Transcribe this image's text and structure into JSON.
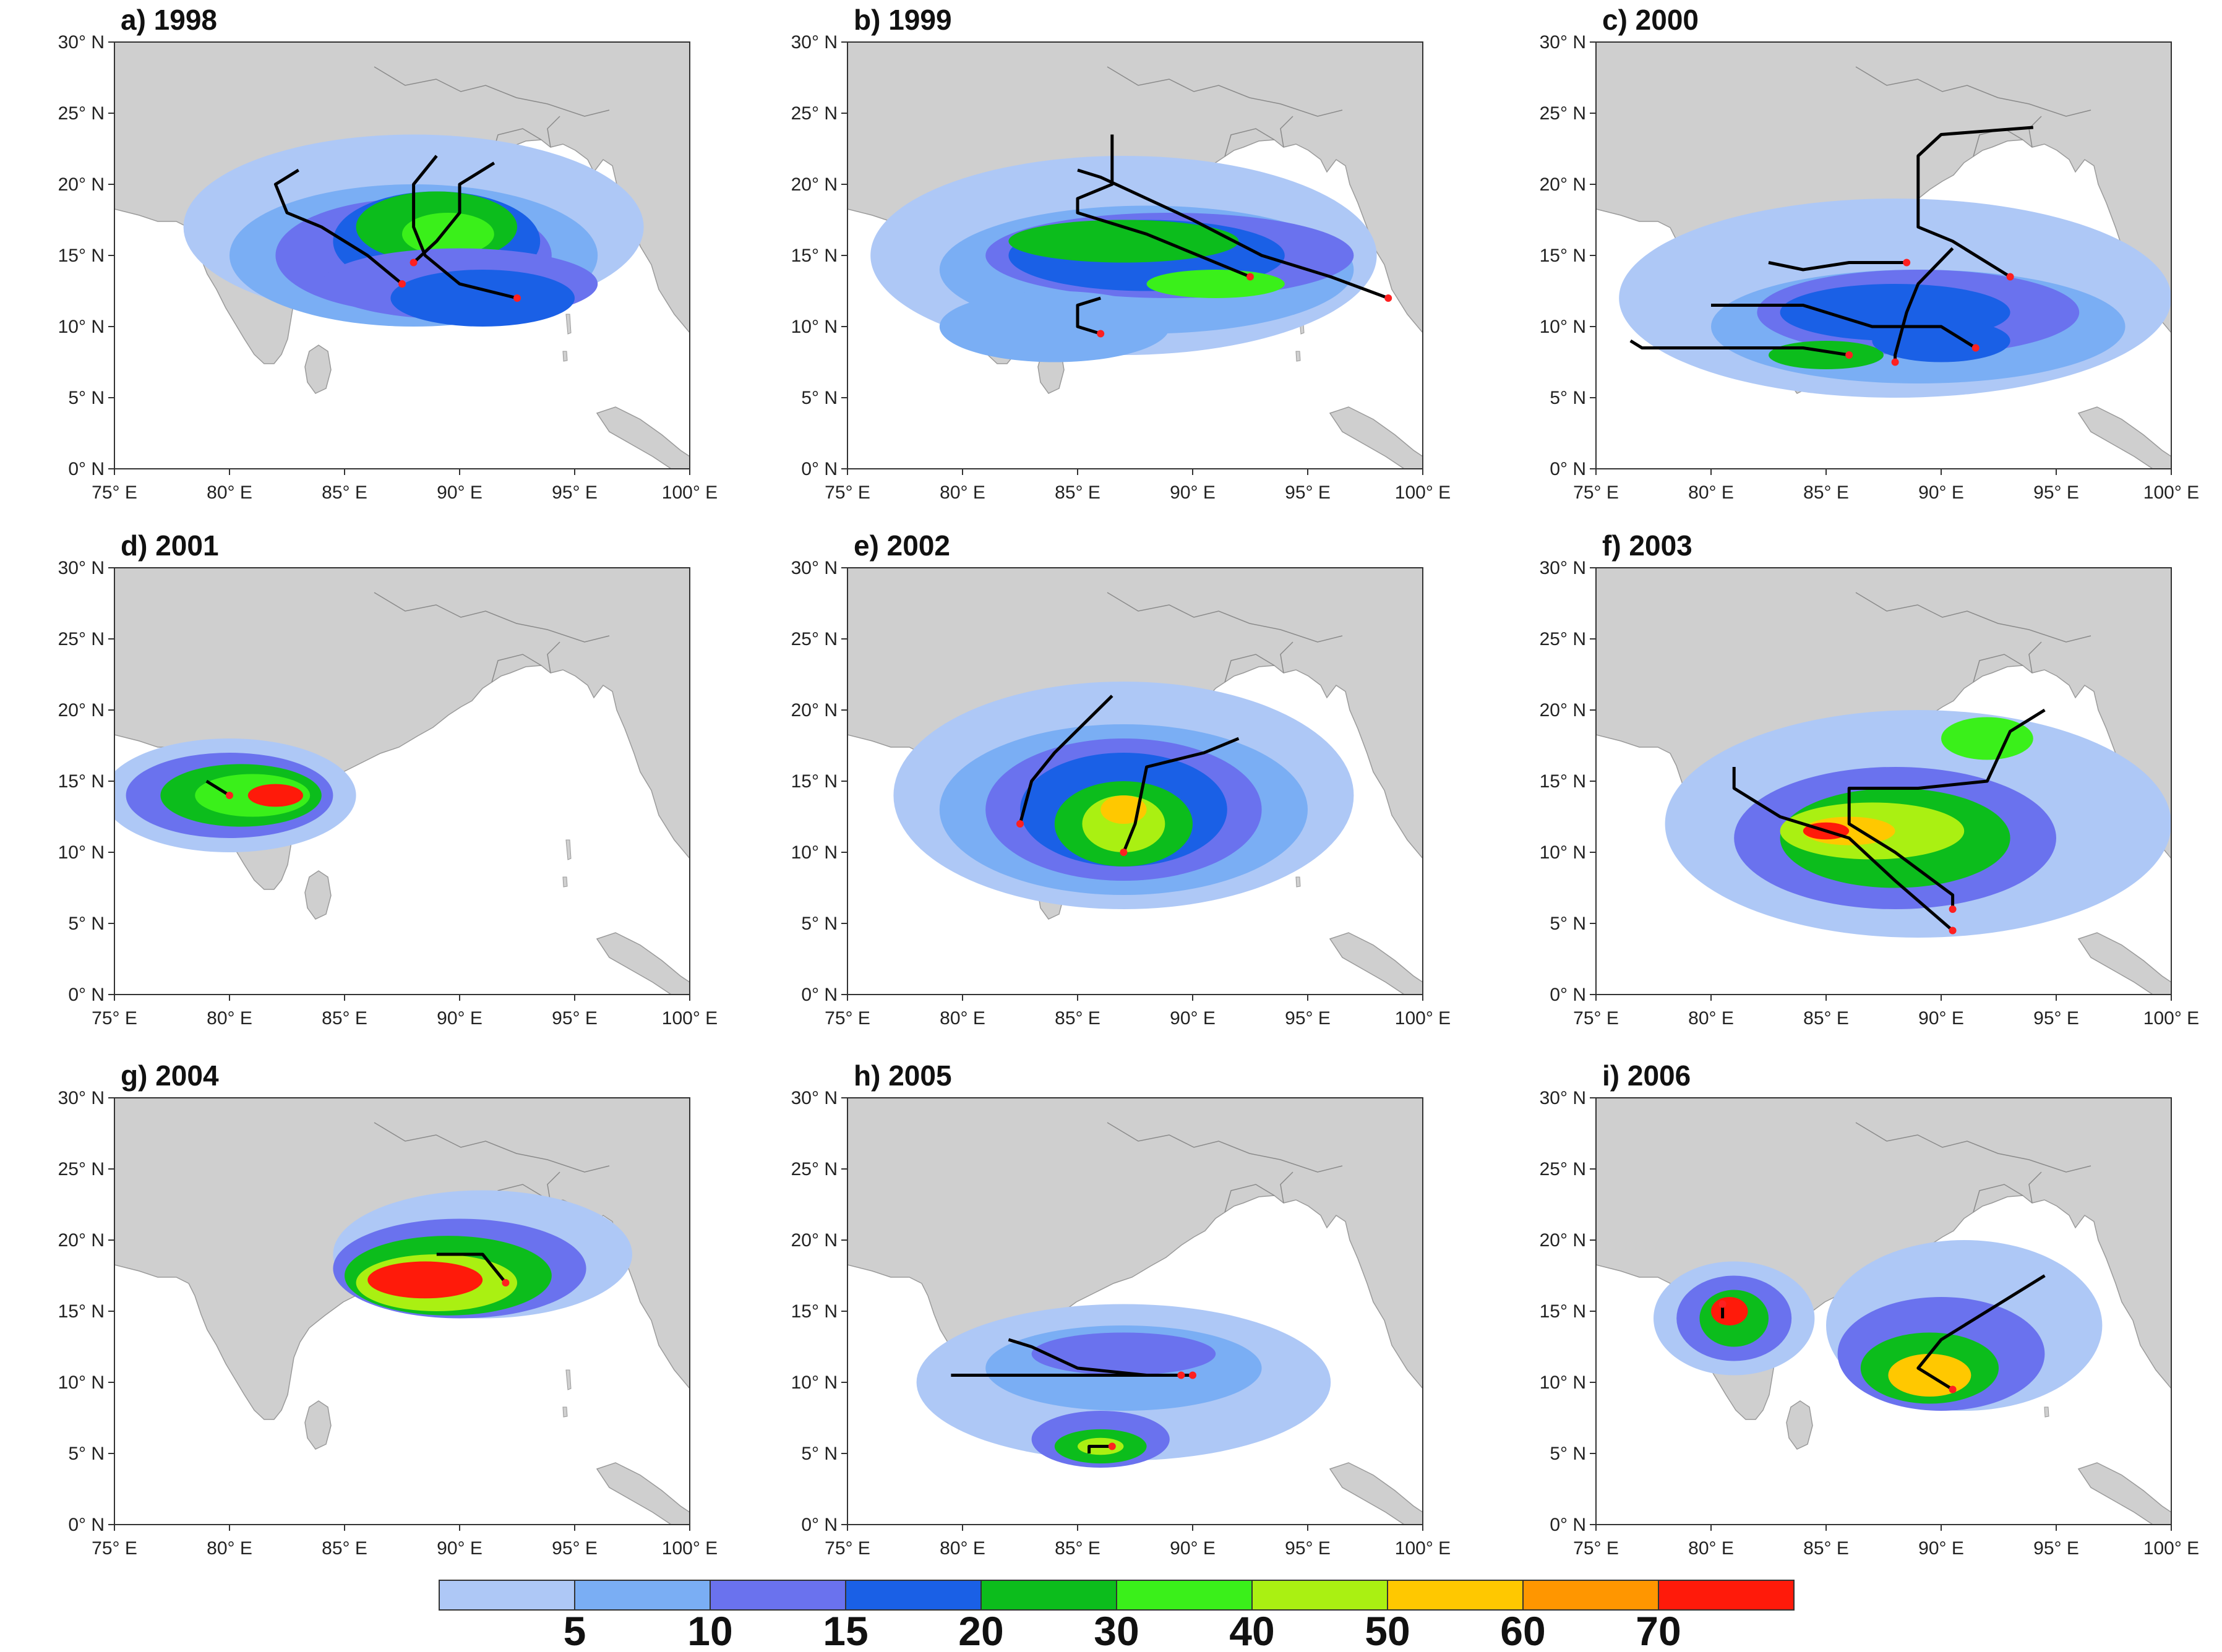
{
  "figure": {
    "panels": [
      {
        "label": "a) 1998"
      },
      {
        "label": "b) 1999"
      },
      {
        "label": "c) 2000"
      },
      {
        "label": "d) 2001"
      },
      {
        "label": "e) 2002"
      },
      {
        "label": "f) 2003"
      },
      {
        "label": "g) 2004"
      },
      {
        "label": "h) 2005"
      },
      {
        "label": "i) 2006"
      }
    ],
    "lat_ticks": [
      "0° N",
      "5° N",
      "10° N",
      "15° N",
      "20° N",
      "25° N",
      "30° N"
    ],
    "lon_ticks": [
      "75° E",
      "80° E",
      "85° E",
      "90° E",
      "95° E",
      "100° E"
    ],
    "colorbar": {
      "labels": [
        "5",
        "10",
        "15",
        "20",
        "30",
        "40",
        "50",
        "60",
        "70"
      ],
      "colors": [
        "#aec8f6",
        "#7aaef4",
        "#6a72ee",
        "#1a60e6",
        "#0cbd1c",
        "#3af01a",
        "#aaf012",
        "#ffc800",
        "#ff9600",
        "#ff1a0a"
      ]
    },
    "colors": {
      "land": "#cfcfcf",
      "ocean": "#ffffff",
      "track": "#000000",
      "genesis": "#ff2020"
    }
  }
}
